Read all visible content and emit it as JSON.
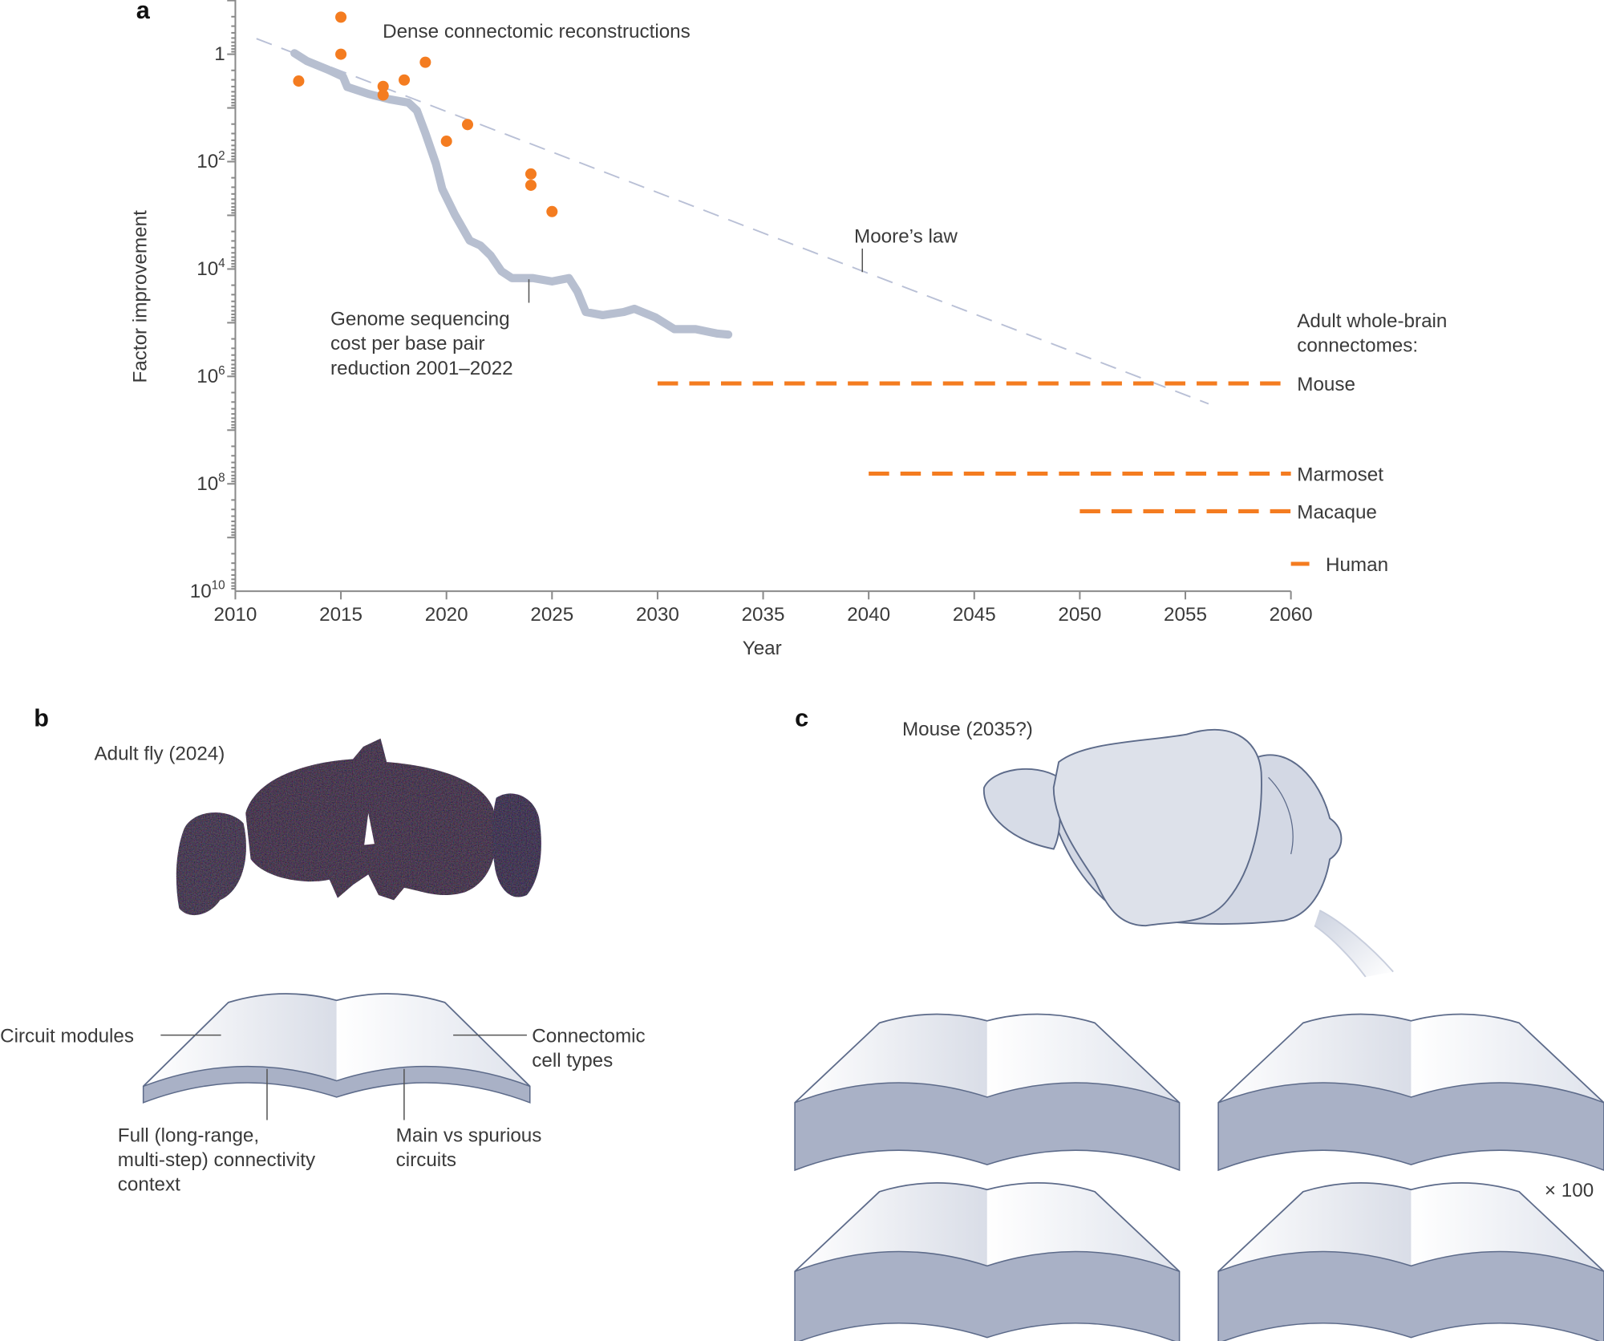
{
  "panels": {
    "a": "a",
    "b": "b",
    "c": "c"
  },
  "colors": {
    "orange": "#f47c20",
    "genome": "#b7bfd0",
    "moore": "#b9c0d6",
    "book_band": "#a9b1c6",
    "outline": "#5d6b8a"
  },
  "chart_data": {
    "type": "scatter",
    "xlabel": "Year",
    "ylabel": "Factor improvement",
    "xlim": [
      2010,
      2060
    ],
    "ylim_log10": [
      -1,
      10
    ],
    "y_scale": "log (inverted, improvement increases downward)",
    "x_ticks": [
      "2010",
      "2015",
      "2020",
      "2025",
      "2030",
      "2035",
      "2040",
      "2045",
      "2050",
      "2055",
      "2060"
    ],
    "y_ticks": [
      {
        "log10": 0,
        "base": "1",
        "exp": ""
      },
      {
        "log10": 2,
        "base": "10",
        "exp": "2"
      },
      {
        "log10": 4,
        "base": "10",
        "exp": "4"
      },
      {
        "log10": 6,
        "base": "10",
        "exp": "6"
      },
      {
        "log10": 8,
        "base": "10",
        "exp": "8"
      },
      {
        "log10": 10,
        "base": "10",
        "exp": "10"
      }
    ],
    "series": [
      {
        "name": "Dense connectomic reconstructions",
        "kind": "points",
        "points": [
          [
            2013,
            0.5
          ],
          [
            2015,
            -0.69
          ],
          [
            2015,
            0.0
          ],
          [
            2017,
            0.6
          ],
          [
            2017,
            0.76
          ],
          [
            2018,
            0.48
          ],
          [
            2019,
            0.15
          ],
          [
            2020,
            1.62
          ],
          [
            2021,
            1.31
          ],
          [
            2024,
            2.23
          ],
          [
            2024,
            2.44
          ],
          [
            2025,
            2.93
          ]
        ]
      },
      {
        "name": "Genome sequencing cost per base pair reduction 2001–2022",
        "kind": "line",
        "points": [
          [
            2012.8,
            -0.02
          ],
          [
            2013.4,
            0.13
          ],
          [
            2014.4,
            0.29
          ],
          [
            2015.1,
            0.42
          ],
          [
            2015.3,
            0.61
          ],
          [
            2016.3,
            0.74
          ],
          [
            2017.3,
            0.84
          ],
          [
            2018.2,
            0.9
          ],
          [
            2018.6,
            1.05
          ],
          [
            2019.0,
            1.47
          ],
          [
            2019.5,
            2.04
          ],
          [
            2019.8,
            2.51
          ],
          [
            2020.4,
            2.99
          ],
          [
            2021.1,
            3.47
          ],
          [
            2021.6,
            3.56
          ],
          [
            2022.1,
            3.75
          ],
          [
            2022.6,
            4.04
          ],
          [
            2023.1,
            4.17
          ],
          [
            2024.1,
            4.17
          ],
          [
            2025.0,
            4.23
          ],
          [
            2025.8,
            4.17
          ],
          [
            2026.2,
            4.42
          ],
          [
            2026.6,
            4.8
          ],
          [
            2027.4,
            4.86
          ],
          [
            2028.4,
            4.8
          ],
          [
            2028.9,
            4.74
          ],
          [
            2029.9,
            4.9
          ],
          [
            2030.8,
            5.12
          ],
          [
            2031.8,
            5.12
          ],
          [
            2032.8,
            5.2
          ],
          [
            2033.35,
            5.22
          ]
        ]
      },
      {
        "name": "Moore's law",
        "kind": "dashed-line",
        "points": [
          [
            2011,
            -0.29
          ],
          [
            2056.1,
            6.51
          ]
        ]
      }
    ],
    "projections": [
      {
        "name": "Mouse",
        "start": 2030,
        "end": 2060,
        "log10": 6.13
      },
      {
        "name": "Marmoset",
        "start": 2040,
        "end": 2060,
        "log10": 7.81
      },
      {
        "name": "Macaque",
        "start": 2050,
        "end": 2060,
        "log10": 8.51
      },
      {
        "name": "Human",
        "start": 2060,
        "end": 2060.9,
        "log10": 9.49
      }
    ],
    "annotations": {
      "dense": "Dense connectomic reconstructions",
      "moore": "Moore’s law",
      "genome": [
        "Genome sequencing",
        "cost per base pair",
        "reduction 2001–2022"
      ],
      "adult": [
        "Adult whole-brain",
        "connectomes:"
      ]
    }
  },
  "panel_b": {
    "title": "Adult fly (2024)",
    "labels": {
      "circuit_modules": "Circuit modules",
      "cell_types": [
        "Connectomic",
        "cell types"
      ],
      "full_context": [
        "Full (long-range,",
        "multi-step) connectivity",
        "context"
      ],
      "main_vs_spurious": [
        "Main vs spurious",
        "circuits"
      ]
    }
  },
  "panel_c": {
    "title": "Mouse (2035?)",
    "multiplier": "× 100"
  }
}
